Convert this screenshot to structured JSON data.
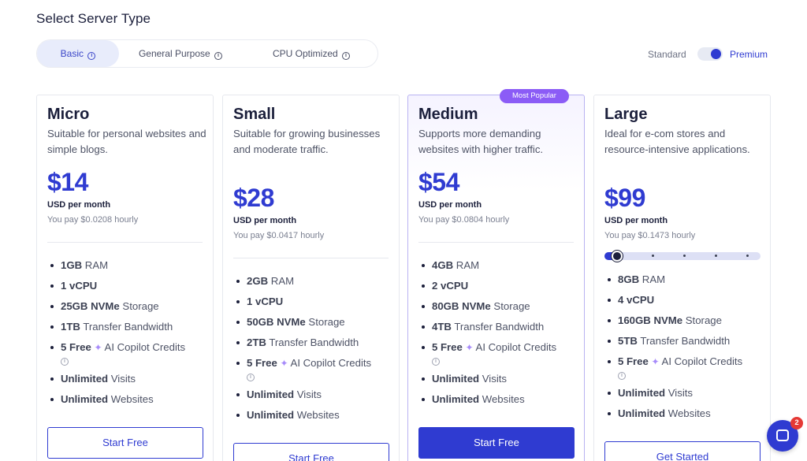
{
  "page": {
    "title": "Select Server Type"
  },
  "tabs": [
    {
      "label": "Basic",
      "active": true
    },
    {
      "label": "General Purpose",
      "active": false
    },
    {
      "label": "CPU Optimized",
      "active": false
    }
  ],
  "toggle": {
    "left_label": "Standard",
    "right_label": "Premium",
    "selected": "Premium"
  },
  "colors": {
    "accent": "#2f3bd1",
    "badge": "#8b5cf6",
    "sparkle": "#a78bfa",
    "chat_badge": "#e53935"
  },
  "plans": [
    {
      "name": "Micro",
      "description": "Suitable for personal websites and simple blogs.",
      "price": "$14",
      "period": "USD per month",
      "hourly": "You pay $0.0208 hourly",
      "features": [
        {
          "bold": "1GB",
          "text": " RAM"
        },
        {
          "bold": "1 vCPU",
          "text": ""
        },
        {
          "bold": "25GB NVMe",
          "text": " Storage"
        },
        {
          "bold": "1TB",
          "text": " Transfer Bandwidth"
        },
        {
          "bold": "5 Free",
          "text": " AI Copilot Credits"
        },
        {
          "bold": "Unlimited",
          "text": " Visits"
        },
        {
          "bold": "Unlimited",
          "text": " Websites"
        }
      ],
      "button": "Start Free"
    },
    {
      "name": "Small",
      "description": "Suitable for growing businesses and moderate traffic.",
      "price": "$28",
      "period": "USD per month",
      "hourly": "You pay $0.0417 hourly",
      "features": [
        {
          "bold": "2GB",
          "text": " RAM"
        },
        {
          "bold": "1 vCPU",
          "text": ""
        },
        {
          "bold": "50GB NVMe",
          "text": " Storage"
        },
        {
          "bold": "2TB",
          "text": " Transfer Bandwidth"
        },
        {
          "bold": "5 Free",
          "text": " AI Copilot Credits"
        },
        {
          "bold": "Unlimited",
          "text": " Visits"
        },
        {
          "bold": "Unlimited",
          "text": " Websites"
        }
      ],
      "button": "Start Free"
    },
    {
      "name": "Medium",
      "badge": "Most Popular",
      "description": "Supports more demanding websites with higher traffic.",
      "price": "$54",
      "period": "USD per month",
      "hourly": "You pay $0.0804 hourly",
      "features": [
        {
          "bold": "4GB",
          "text": " RAM"
        },
        {
          "bold": "2 vCPU",
          "text": ""
        },
        {
          "bold": "80GB NVMe",
          "text": " Storage"
        },
        {
          "bold": "4TB",
          "text": " Transfer Bandwidth"
        },
        {
          "bold": "5 Free",
          "text": " AI Copilot Credits"
        },
        {
          "bold": "Unlimited",
          "text": " Visits"
        },
        {
          "bold": "Unlimited",
          "text": " Websites"
        }
      ],
      "button": "Start Free"
    },
    {
      "name": "Large",
      "description": "Ideal for e-com stores and resource-intensive applications.",
      "price": "$99",
      "period": "USD per month",
      "hourly": "You pay $0.1473 hourly",
      "slider": {
        "position": 0,
        "steps": 5
      },
      "features": [
        {
          "bold": "8GB",
          "text": " RAM"
        },
        {
          "bold": "4 vCPU",
          "text": ""
        },
        {
          "bold": "160GB NVMe",
          "text": " Storage"
        },
        {
          "bold": "5TB",
          "text": " Transfer Bandwidth"
        },
        {
          "bold": "5 Free",
          "text": " AI Copilot Credits"
        },
        {
          "bold": "Unlimited",
          "text": " Visits"
        },
        {
          "bold": "Unlimited",
          "text": " Websites"
        }
      ],
      "button": "Get Started"
    }
  ],
  "chat": {
    "badge_count": "2"
  }
}
